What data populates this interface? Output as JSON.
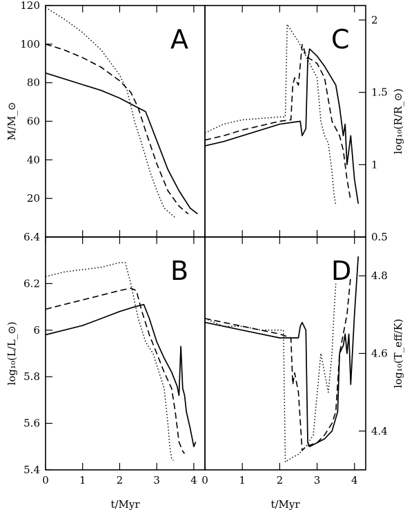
{
  "chart_data": [
    {
      "panel": "A",
      "type": "line",
      "ylabel": "M/M_⊙",
      "xlim": [
        0,
        4.3
      ],
      "ylim": [
        0,
        120
      ],
      "yticks": [
        "20",
        "40",
        "60",
        "80",
        "100",
        "120"
      ],
      "series": [
        {
          "style": "solid",
          "x": [
            0,
            0.5,
            1.0,
            1.5,
            2.0,
            2.4,
            2.7,
            3.0,
            3.3,
            3.6,
            3.9,
            4.1
          ],
          "y": [
            85,
            82,
            79,
            76,
            72,
            68,
            65,
            50,
            35,
            24,
            15,
            12
          ]
        },
        {
          "style": "dashed",
          "x": [
            0,
            0.5,
            1.0,
            1.5,
            2.0,
            2.3,
            2.5,
            2.7,
            3.0,
            3.3,
            3.6,
            3.85
          ],
          "y": [
            100,
            97,
            93,
            88,
            81,
            75,
            67,
            55,
            38,
            24,
            16,
            12
          ]
        },
        {
          "style": "dotted",
          "x": [
            0,
            0.5,
            1.0,
            1.5,
            2.0,
            2.2,
            2.4,
            2.6,
            2.8,
            3.0,
            3.2,
            3.5
          ],
          "y": [
            119,
            113,
            106,
            97,
            84,
            76,
            60,
            48,
            35,
            24,
            15,
            10
          ]
        }
      ]
    },
    {
      "panel": "C",
      "type": "line",
      "ylabel": "log₁₀(R/R_⊙)",
      "xlim": [
        0,
        4.3
      ],
      "ylim": [
        0.5,
        2.1
      ],
      "yticks": [
        "0.5",
        "1",
        "1.5",
        "2"
      ],
      "series": [
        {
          "style": "solid",
          "x": [
            0,
            0.5,
            1.0,
            1.5,
            2.0,
            2.55,
            2.6,
            2.7,
            2.75,
            2.8,
            3.0,
            3.2,
            3.5,
            3.6,
            3.7,
            3.75,
            3.8,
            3.9,
            4.0,
            4.1
          ],
          "y": [
            1.13,
            1.16,
            1.2,
            1.24,
            1.28,
            1.3,
            1.2,
            1.25,
            1.72,
            1.8,
            1.75,
            1.68,
            1.55,
            1.4,
            1.2,
            1.28,
            1.0,
            1.2,
            0.9,
            0.73
          ]
        },
        {
          "style": "dashed",
          "x": [
            0,
            0.5,
            1.0,
            1.5,
            2.0,
            2.3,
            2.35,
            2.4,
            2.5,
            2.6,
            2.65,
            2.7,
            3.0,
            3.2,
            3.4,
            3.5,
            3.6,
            3.7,
            3.8,
            3.9
          ],
          "y": [
            1.17,
            1.2,
            1.24,
            1.27,
            1.3,
            1.31,
            1.55,
            1.6,
            1.55,
            1.83,
            1.8,
            1.75,
            1.7,
            1.6,
            1.3,
            1.25,
            1.2,
            1.1,
            0.9,
            0.75
          ]
        },
        {
          "style": "dotted",
          "x": [
            0,
            0.5,
            1.0,
            1.5,
            2.0,
            2.15,
            2.2,
            2.3,
            2.5,
            2.7,
            3.0,
            3.1,
            3.2,
            3.3,
            3.4,
            3.45,
            3.5
          ],
          "y": [
            1.22,
            1.28,
            1.31,
            1.32,
            1.33,
            1.33,
            1.97,
            1.93,
            1.85,
            1.75,
            1.6,
            1.3,
            1.2,
            1.15,
            0.95,
            0.8,
            0.72
          ]
        }
      ]
    },
    {
      "panel": "B",
      "type": "line",
      "ylabel": "log₁₀(L/L_⊙)",
      "xlabel": "t/Myr",
      "xlim": [
        0,
        4.3
      ],
      "ylim": [
        5.4,
        6.4
      ],
      "xticks": [
        "0",
        "1",
        "2",
        "3",
        "4"
      ],
      "yticks": [
        "5.4",
        "5.6",
        "5.8",
        "6",
        "6.2",
        "6.4"
      ],
      "series": [
        {
          "style": "solid",
          "x": [
            0,
            0.5,
            1.0,
            1.5,
            2.0,
            2.4,
            2.65,
            2.8,
            3.0,
            3.2,
            3.4,
            3.55,
            3.6,
            3.65,
            3.7,
            3.75,
            3.8,
            3.9,
            4.0,
            4.05
          ],
          "y": [
            5.98,
            6.0,
            6.02,
            6.05,
            6.08,
            6.1,
            6.11,
            6.05,
            5.95,
            5.88,
            5.82,
            5.76,
            5.72,
            5.93,
            5.75,
            5.72,
            5.65,
            5.58,
            5.5,
            5.52
          ]
        },
        {
          "style": "dashed",
          "x": [
            0,
            0.5,
            1.0,
            1.5,
            2.0,
            2.3,
            2.45,
            2.6,
            2.8,
            3.0,
            3.2,
            3.4,
            3.5,
            3.6,
            3.7,
            3.75
          ],
          "y": [
            6.09,
            6.11,
            6.13,
            6.15,
            6.17,
            6.18,
            6.17,
            6.08,
            5.98,
            5.9,
            5.82,
            5.75,
            5.65,
            5.52,
            5.48,
            5.47
          ]
        },
        {
          "style": "dotted",
          "x": [
            0,
            0.5,
            1.0,
            1.5,
            2.0,
            2.15,
            2.3,
            2.5,
            2.7,
            2.9,
            3.1,
            3.2,
            3.3,
            3.35,
            3.4,
            3.45
          ],
          "y": [
            6.23,
            6.25,
            6.26,
            6.27,
            6.29,
            6.29,
            6.2,
            6.05,
            5.95,
            5.9,
            5.8,
            5.75,
            5.6,
            5.5,
            5.45,
            5.44
          ]
        }
      ]
    },
    {
      "panel": "D",
      "type": "line",
      "ylabel": "log₁₀(T_eff/K)",
      "xlabel": "t/Myr",
      "xlim": [
        0,
        4.3
      ],
      "ylim": [
        4.3,
        4.9
      ],
      "xticks": [
        "0",
        "1",
        "2",
        "3",
        "4"
      ],
      "yticks": [
        "4.4",
        "4.6",
        "4.8"
      ],
      "series": [
        {
          "style": "solid",
          "x": [
            0,
            0.5,
            1.0,
            1.5,
            2.0,
            2.5,
            2.55,
            2.6,
            2.7,
            2.75,
            2.8,
            3.0,
            3.2,
            3.4,
            3.55,
            3.6,
            3.7,
            3.75,
            3.8,
            3.85,
            3.9,
            4.0,
            4.1
          ],
          "y": [
            4.68,
            4.67,
            4.66,
            4.65,
            4.64,
            4.64,
            4.67,
            4.68,
            4.66,
            4.37,
            4.36,
            4.37,
            4.38,
            4.4,
            4.45,
            4.6,
            4.62,
            4.65,
            4.6,
            4.65,
            4.52,
            4.7,
            4.85
          ]
        },
        {
          "style": "dashed",
          "x": [
            0,
            0.5,
            1.0,
            1.5,
            2.0,
            2.3,
            2.35,
            2.4,
            2.5,
            2.6,
            2.7,
            3.0,
            3.2,
            3.4,
            3.5,
            3.6,
            3.7,
            3.8,
            3.9
          ],
          "y": [
            4.69,
            4.68,
            4.67,
            4.66,
            4.65,
            4.64,
            4.52,
            4.55,
            4.5,
            4.35,
            4.36,
            4.37,
            4.39,
            4.42,
            4.45,
            4.6,
            4.65,
            4.7,
            4.8
          ]
        },
        {
          "style": "dotted",
          "x": [
            0,
            0.5,
            1.0,
            1.5,
            2.0,
            2.1,
            2.15,
            2.3,
            2.5,
            2.7,
            2.9,
            3.1,
            3.2,
            3.3,
            3.4,
            3.45,
            3.5
          ],
          "y": [
            4.69,
            4.67,
            4.67,
            4.66,
            4.66,
            4.66,
            4.32,
            4.33,
            4.34,
            4.36,
            4.39,
            4.6,
            4.55,
            4.5,
            4.6,
            4.7,
            4.78
          ]
        }
      ]
    }
  ]
}
